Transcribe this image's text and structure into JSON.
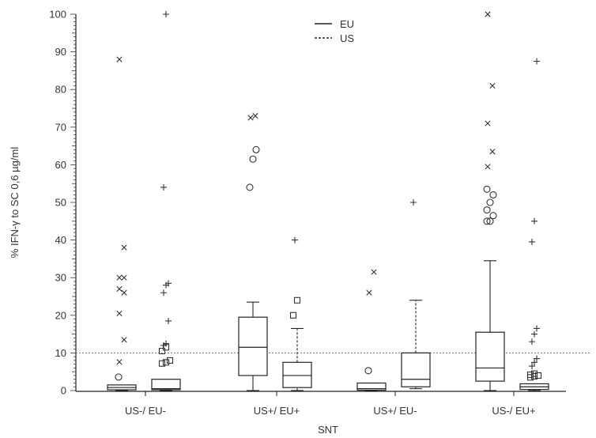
{
  "chart_data": {
    "type": "boxplot",
    "ylabel": "% IFN-γ to SC 0,6 µg/ml",
    "xlabel": "SNT",
    "ylim": [
      0,
      100
    ],
    "yticks": [
      0,
      10,
      20,
      30,
      40,
      50,
      60,
      70,
      80,
      90,
      100
    ],
    "reference_line": 10,
    "legend": {
      "position": "top-center",
      "entries": [
        {
          "label": "EU",
          "style": "solid"
        },
        {
          "label": "US",
          "style": "dashed"
        }
      ]
    },
    "categories": [
      "US-/ EU-",
      "US+/ EU+",
      "US+/ EU-",
      "US-/ EU+"
    ],
    "groups": [
      {
        "category": "US-/ EU-",
        "boxes": [
          {
            "series": "EU",
            "whisker_low": 0,
            "q1": 0.2,
            "median": 0.8,
            "q3": 1.5,
            "whisker_high": 1.5,
            "outliers_circle": [
              3.6
            ],
            "outliers_x": [
              7.6,
              13.5,
              20.5,
              26,
              27,
              30,
              30,
              38,
              88
            ],
            "outliers_square": [],
            "outliers_plus": []
          },
          {
            "series": "US",
            "whisker_low": 0,
            "q1": 0.2,
            "median": 0.5,
            "q3": 3,
            "whisker_high": 3,
            "outliers_circle": [],
            "outliers_x": [],
            "outliers_square": [
              7.2,
              7.5,
              8,
              10.5,
              11.5
            ],
            "outliers_plus": [
              12,
              12.5,
              18.5,
              26,
              28,
              28.5,
              54,
              100
            ]
          }
        ]
      },
      {
        "category": "US+/ EU+",
        "boxes": [
          {
            "series": "EU",
            "whisker_low": 0,
            "q1": 4,
            "median": 11.5,
            "q3": 19.5,
            "whisker_high": 23.5,
            "outliers_circle": [
              54,
              61.5,
              64
            ],
            "outliers_x": [
              72.5,
              73
            ],
            "outliers_square": [],
            "outliers_plus": []
          },
          {
            "series": "US",
            "whisker_low": 0,
            "q1": 0.8,
            "median": 4,
            "q3": 7.5,
            "whisker_high": 16.5,
            "outliers_circle": [],
            "outliers_x": [],
            "outliers_square": [
              20,
              24
            ],
            "outliers_plus": [
              40
            ]
          }
        ]
      },
      {
        "category": "US+/ EU-",
        "boxes": [
          {
            "series": "EU",
            "whisker_low": 0,
            "q1": 0.1,
            "median": 0.5,
            "q3": 2,
            "whisker_high": 2,
            "outliers_circle": [
              5.3
            ],
            "outliers_x": [
              26,
              31.5
            ],
            "outliers_square": [],
            "outliers_plus": []
          },
          {
            "series": "US",
            "whisker_low": 0.5,
            "q1": 1,
            "median": 3,
            "q3": 10,
            "whisker_high": 24,
            "outliers_circle": [],
            "outliers_x": [],
            "outliers_square": [],
            "outliers_plus": [
              50
            ]
          }
        ]
      },
      {
        "category": "US-/ EU+",
        "boxes": [
          {
            "series": "EU",
            "whisker_low": 0,
            "q1": 2.5,
            "median": 6,
            "q3": 15.5,
            "whisker_high": 34.5,
            "outliers_circle": [
              45,
              45,
              46.5,
              48,
              50,
              52,
              53.5
            ],
            "outliers_x": [
              59.5,
              63.5,
              71,
              81,
              100
            ],
            "outliers_square": [],
            "outliers_plus": []
          },
          {
            "series": "US",
            "whisker_low": 0,
            "q1": 0.3,
            "median": 1,
            "q3": 1.8,
            "whisker_high": 1.8,
            "outliers_circle": [],
            "outliers_x": [],
            "outliers_square": [
              3.5,
              3.8,
              4,
              4.2,
              4.5
            ],
            "outliers_plus": [
              6.5,
              7.5,
              8.5,
              13,
              15,
              16.5,
              39.5,
              45,
              87.5
            ]
          }
        ]
      }
    ]
  }
}
